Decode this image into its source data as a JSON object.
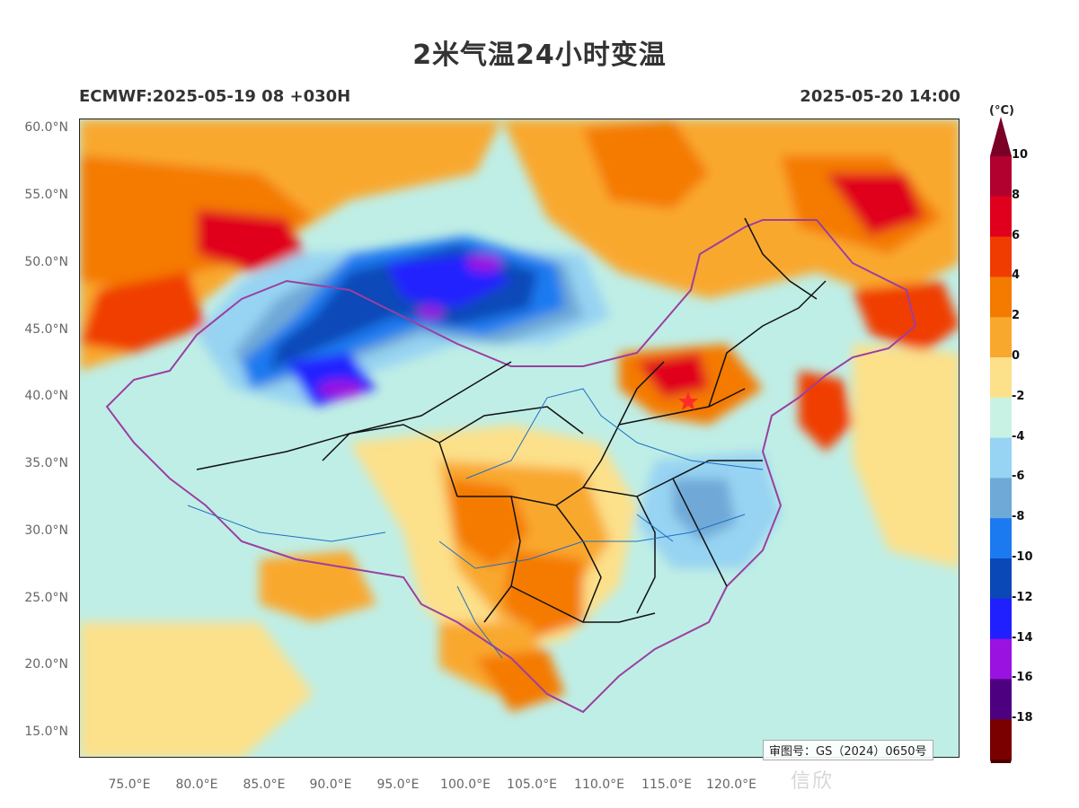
{
  "title": "2米气温24小时变温",
  "model_run": "ECMWF:2025-05-19 08 +030H",
  "valid_time": "2025-05-20 14:00",
  "approval_number": "审图号：GS（2024）0650号",
  "watermark": "信欣",
  "lat_labels": [
    "60.0°N",
    "55.0°N",
    "50.0°N",
    "45.0°N",
    "40.0°N",
    "35.0°N",
    "30.0°N",
    "25.0°N",
    "20.0°N",
    "15.0°N"
  ],
  "lon_labels": [
    "75.0°E",
    "80.0°E",
    "85.0°E",
    "90.0°E",
    "95.0°E",
    "100.0°E",
    "105.0°E",
    "110.0°E",
    "115.0°E",
    "120.0°E"
  ],
  "colorbar": {
    "unit": "(°C)",
    "labels": [
      "10",
      "8",
      "6",
      "4",
      "2",
      "0",
      "-2",
      "-4",
      "-6",
      "-8",
      "-10",
      "-12",
      "-14",
      "-16",
      "-18"
    ],
    "colors": [
      "#b2002f",
      "#e0001d",
      "#f03c00",
      "#f47a00",
      "#f9a82e",
      "#fce08a",
      "#c8f3e4",
      "#97d3f2",
      "#6fa9d7",
      "#1c7af0",
      "#0a48b8",
      "#2020ff",
      "#9a12e0",
      "#4d007f",
      "#7a0000"
    ],
    "top_cap": "#7a0026",
    "bottom_cap": "#4a0000"
  },
  "legend_features": [
    "national-border",
    "province-borders",
    "rivers",
    "lakes",
    "beijing-star"
  ]
}
